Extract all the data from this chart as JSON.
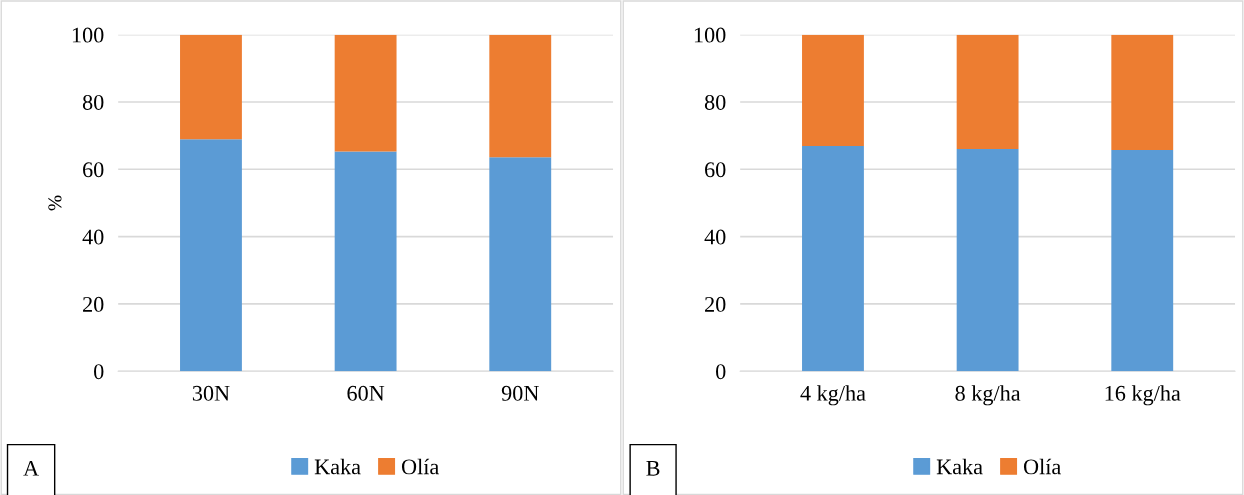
{
  "chart_data": [
    {
      "type": "bar",
      "stacked": true,
      "ylabel": "%",
      "categories": [
        "30N",
        "60N",
        "90N"
      ],
      "series": [
        {
          "name": "Kaka",
          "color": "#5b9bd5",
          "values": [
            68.9,
            65.3,
            63.6
          ]
        },
        {
          "name": "Olía",
          "color": "#ed7d31",
          "values": [
            31.1,
            34.7,
            36.4
          ]
        }
      ],
      "ylim": [
        0,
        100
      ],
      "yticks": [
        0,
        20,
        40,
        60,
        80,
        100
      ],
      "grid": "y",
      "legend": "bottom",
      "annotations": [
        "A"
      ]
    },
    {
      "type": "bar",
      "stacked": true,
      "categories": [
        "4 kg/ha",
        "8 kg/ha",
        "16 kg/ha"
      ],
      "series": [
        {
          "name": "Kaka",
          "color": "#5b9bd5",
          "values": [
            66.9,
            66.0,
            65.7
          ]
        },
        {
          "name": "Olía",
          "color": "#ed7d31",
          "values": [
            33.1,
            34.0,
            34.3
          ]
        }
      ],
      "ylim": [
        0,
        100
      ],
      "yticks": [
        0,
        20,
        40,
        60,
        80,
        100
      ],
      "grid": "y",
      "legend": "bottom",
      "annotations": [
        "B"
      ]
    }
  ]
}
